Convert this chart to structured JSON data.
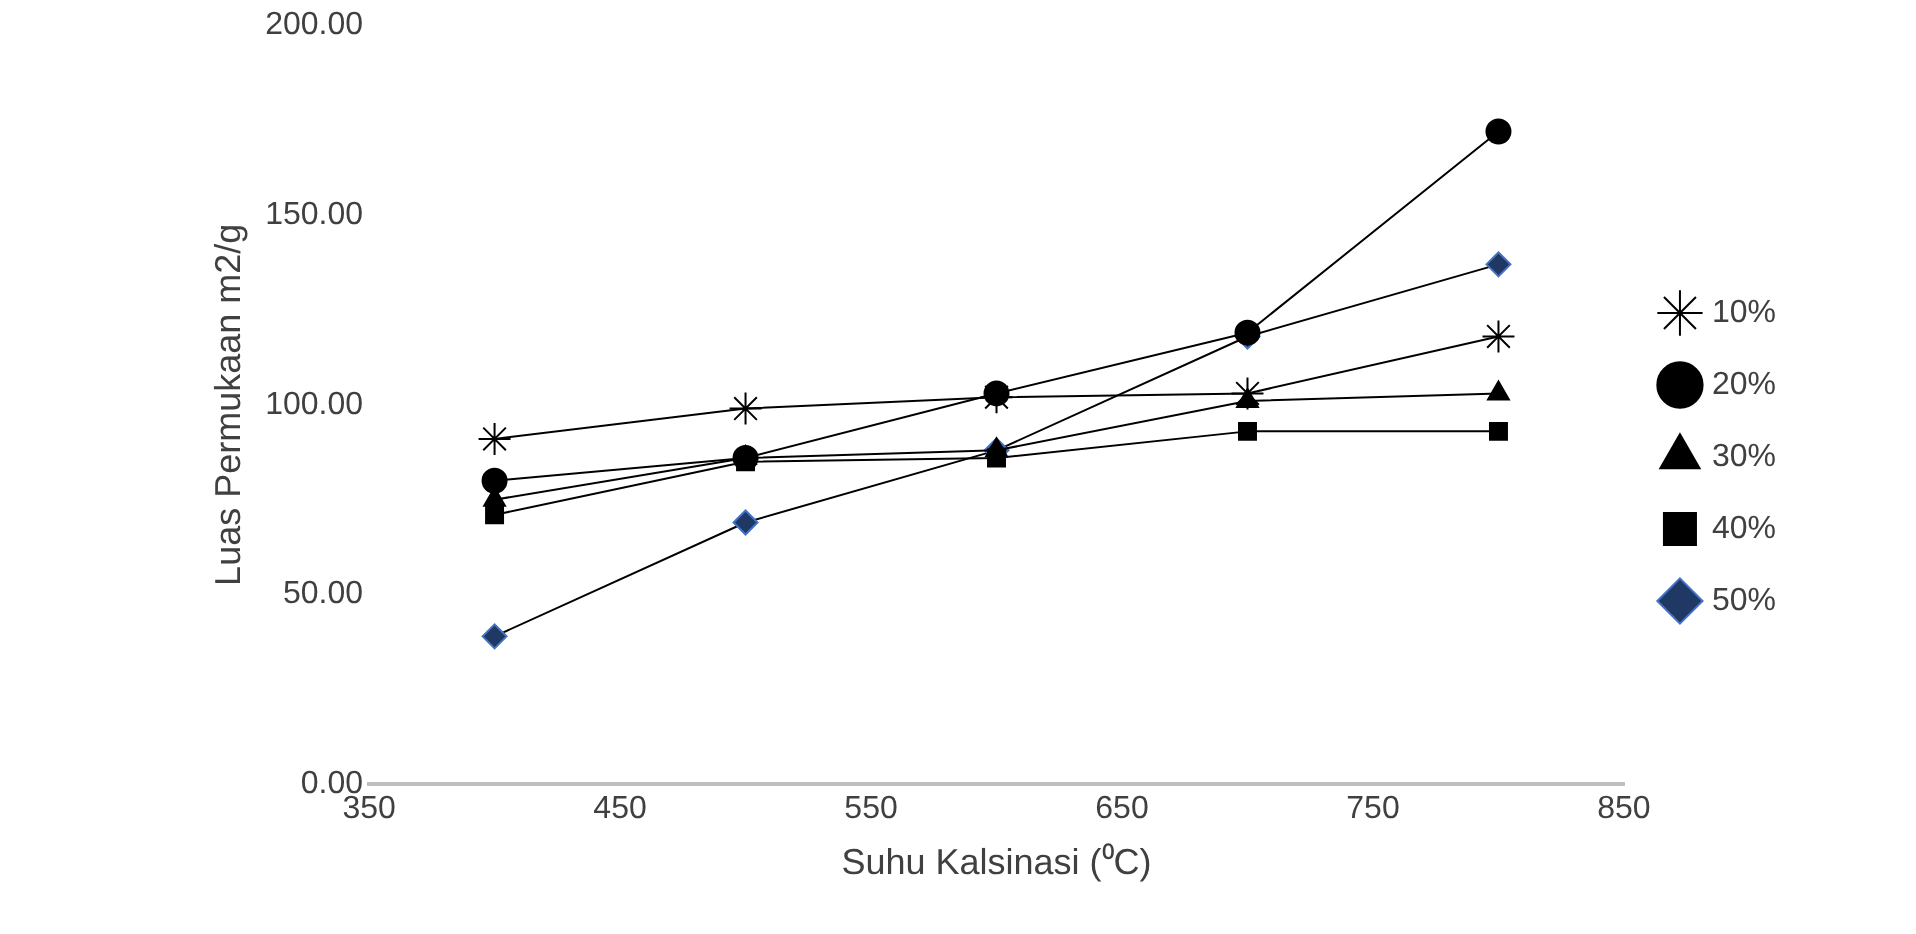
{
  "chart_data": {
    "type": "line",
    "xlabel": "Suhu Kalsinasi (⁰C)",
    "ylabel": "Luas Permukaan m2/g",
    "x": [
      400,
      500,
      600,
      700,
      800
    ],
    "xlim": [
      350,
      850
    ],
    "xticks": [
      350,
      450,
      550,
      650,
      750,
      850
    ],
    "ylim": [
      0,
      200
    ],
    "yticks": [
      {
        "value": 0,
        "label": "0.00"
      },
      {
        "value": 50,
        "label": "50.00"
      },
      {
        "value": 100,
        "label": "100.00"
      },
      {
        "value": 150,
        "label": "150.00"
      },
      {
        "value": 200,
        "label": "200.00"
      }
    ],
    "grid": false,
    "legend": "right",
    "line_style": "solid",
    "series": [
      {
        "name": "10%",
        "color": "#000000",
        "marker": "cross",
        "values": [
          91,
          99,
          102,
          103,
          118
        ]
      },
      {
        "name": "20%",
        "color": "#000000",
        "marker": "circle",
        "values": [
          80,
          86,
          103,
          119,
          172
        ]
      },
      {
        "name": "30%",
        "color": "#000000",
        "marker": "triangle",
        "values": [
          75,
          86,
          88,
          101,
          103
        ]
      },
      {
        "name": "40%",
        "color": "#000000",
        "marker": "square",
        "values": [
          71,
          85,
          86,
          93,
          93
        ]
      },
      {
        "name": "50%",
        "color": "#1f3864",
        "marker": "diamond",
        "values": [
          39,
          69,
          88,
          118,
          137
        ]
      }
    ]
  }
}
